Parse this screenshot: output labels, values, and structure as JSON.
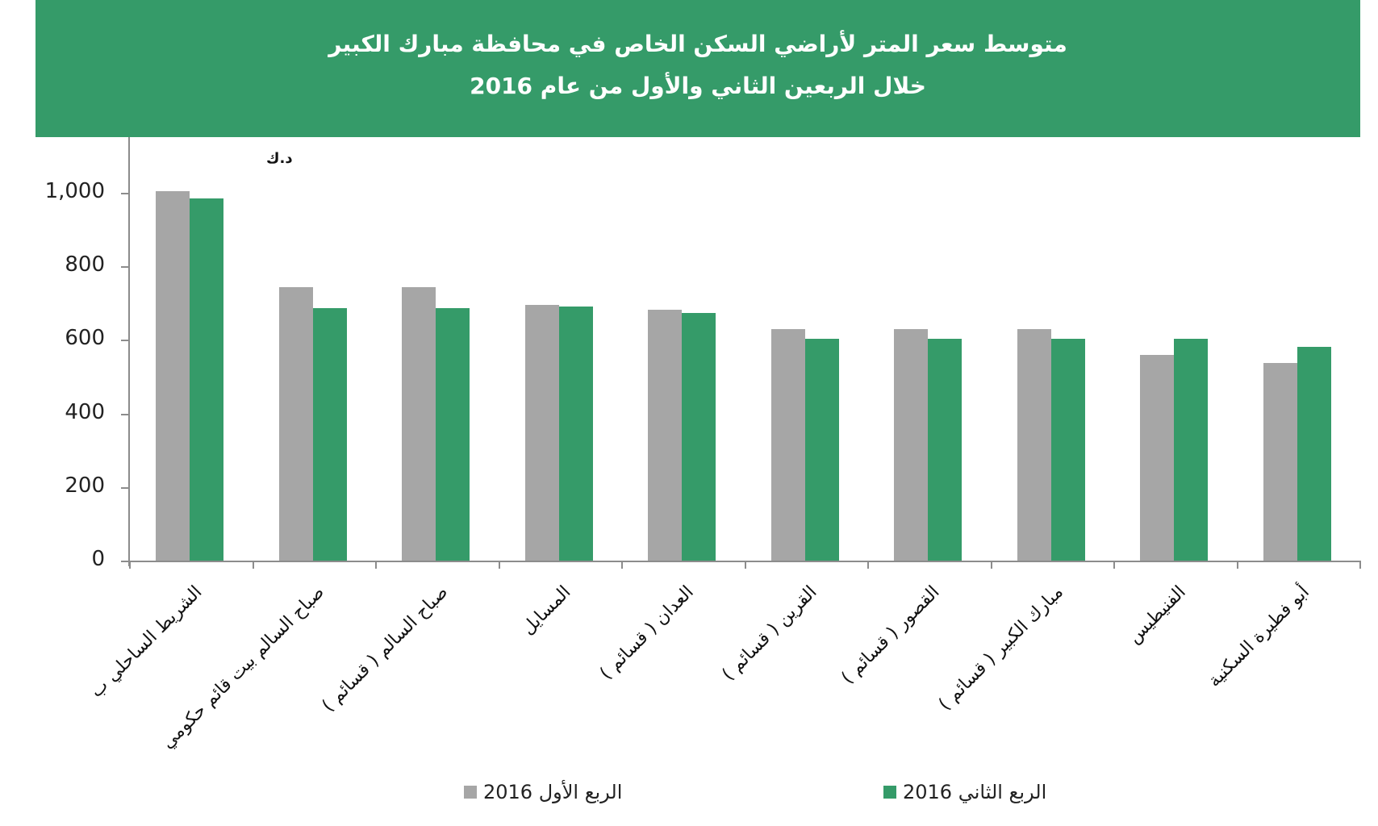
{
  "header": {
    "title_line1": "متوسط سعر المتر  لأراضي السكن الخاص في محافظة مبارك الكبير",
    "title_line2": "خلال الربعين الثاني والأول من عام  2016",
    "background_color": "#359B69"
  },
  "unit_label": "د.ك",
  "legend": [
    {
      "label": "الربع الأول 2016",
      "color": "#A6A6A6"
    },
    {
      "label": "الربع الثاني 2016",
      "color": "#359B69"
    }
  ],
  "y_ticks": [
    "0",
    "200",
    "400",
    "600",
    "800",
    "1,000"
  ],
  "chart_data": {
    "type": "bar",
    "title": "متوسط سعر المتر لأراضي السكن الخاص في محافظة مبارك الكبير خلال الربعين الثاني والأول من عام 2016",
    "xlabel": "",
    "ylabel": "د.ك",
    "ylim": [
      0,
      1100
    ],
    "yticks": [
      0,
      200,
      400,
      600,
      800,
      1000
    ],
    "grid": false,
    "legend_position": "bottom",
    "categories": [
      "الشريط الساحلي ب",
      "صباح السالم بيت قائم حكومي",
      "صباح السالم ( قسائم )",
      "المسايل",
      "العدان ( قسائم )",
      "القرين ( قسائم )",
      "القصور ( قسائم )",
      "مبارك الكبير ( قسائم )",
      "الفنيطيس",
      "أبو فطيرة السكنية"
    ],
    "series": [
      {
        "name": "الربع الأول 2016",
        "color": "#A6A6A6",
        "values": [
          1005,
          743,
          743,
          695,
          682,
          629,
          629,
          629,
          559,
          538
        ]
      },
      {
        "name": "الربع الثاني 2016",
        "color": "#359B69",
        "values": [
          984,
          686,
          686,
          691,
          673,
          603,
          603,
          603,
          603,
          581
        ]
      }
    ]
  }
}
